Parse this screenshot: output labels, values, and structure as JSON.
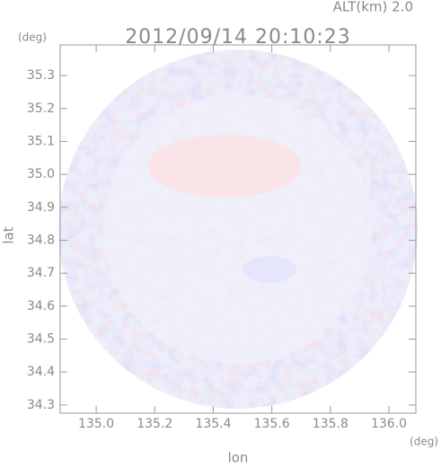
{
  "chart_data": {
    "type": "map",
    "title": "2012/09/14 20:10:23",
    "altitude_label": "ALT(km) 2.0",
    "x_label": "lon",
    "y_label": "lat",
    "x_unit": "(deg)",
    "y_unit": "(deg)",
    "xlim": [
      134.877,
      136.092
    ],
    "ylim": [
      34.275,
      35.393
    ],
    "xticks": [
      {
        "value": 135.0,
        "label": "135.0"
      },
      135.2,
      135.4,
      135.6,
      135.8,
      {
        "value": 136.0,
        "label": "136.0"
      }
    ],
    "yticks": [
      34.3,
      34.4,
      34.5,
      34.6,
      34.7,
      34.8,
      34.9,
      {
        "value": 35.0,
        "label": "35.0"
      },
      35.1,
      35.2,
      35.3
    ]
  }
}
